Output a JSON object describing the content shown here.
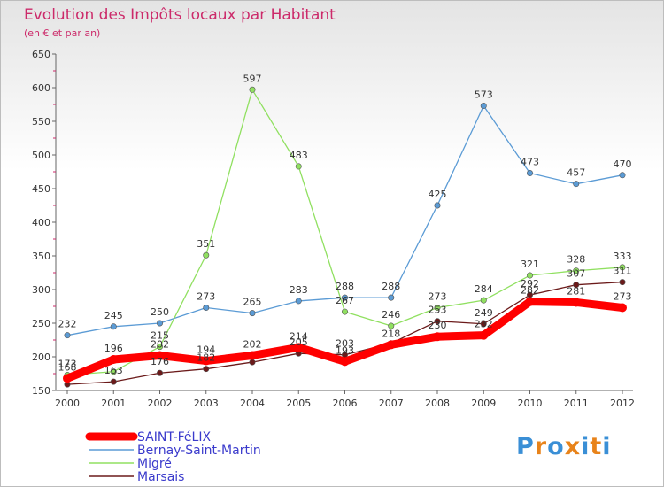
{
  "chart_data": {
    "type": "line",
    "title": "Evolution des Impôts locaux par Habitant",
    "subtitle": "(en € et par an)",
    "x": [
      "2000",
      "2001",
      "2002",
      "2003",
      "2004",
      "2005",
      "2006",
      "2007",
      "2008",
      "2009",
      "2010",
      "2011",
      "2012"
    ],
    "ylim": [
      150,
      650
    ],
    "yticks": [
      150,
      200,
      250,
      300,
      350,
      400,
      450,
      500,
      550,
      600,
      650
    ],
    "grid": false,
    "legend_position": "bottom-left",
    "series": [
      {
        "name": "SAINT-FéLIX",
        "color": "#ff0000",
        "values": [
          168,
          196,
          202,
          194,
          202,
          214,
          193,
          218,
          230,
          232,
          282,
          281,
          273
        ],
        "labels": [
          "168",
          "196",
          "202",
          "194",
          "202",
          "214",
          "193",
          "218",
          "230",
          "232",
          "282",
          "281",
          "273"
        ]
      },
      {
        "name": "Bernay-Saint-Martin",
        "color": "#5b9bd5",
        "values": [
          232,
          245,
          250,
          273,
          265,
          283,
          288,
          288,
          425,
          573,
          473,
          457,
          470
        ],
        "labels": [
          "232",
          "245",
          "250",
          "273",
          "265",
          "283",
          "288",
          "288",
          "425",
          "573",
          "473",
          "457",
          "470"
        ]
      },
      {
        "name": "Migré",
        "color": "#90e060",
        "values": [
          173,
          178,
          215,
          351,
          597,
          483,
          267,
          246,
          273,
          284,
          321,
          328,
          333
        ],
        "labels": [
          "173",
          "",
          "215",
          "351",
          "597",
          "483",
          "267",
          "246",
          "273",
          "284",
          "321",
          "328",
          "333"
        ]
      },
      {
        "name": "Marsais",
        "color": "#6b1a1a",
        "values": [
          159,
          163,
          176,
          182,
          192,
          205,
          203,
          220,
          253,
          249,
          292,
          307,
          311
        ],
        "labels": [
          "",
          "163",
          "176",
          "182",
          "",
          "205",
          "203",
          "",
          "253",
          "249",
          "292",
          "307",
          "311"
        ]
      }
    ]
  },
  "logo": {
    "text": "Proxiti",
    "letter_colors": [
      "#3a8fd6",
      "#e8831a",
      "#3a8fd6",
      "#e8831a",
      "#3a8fd6",
      "#e8831a",
      "#3a8fd6"
    ]
  }
}
